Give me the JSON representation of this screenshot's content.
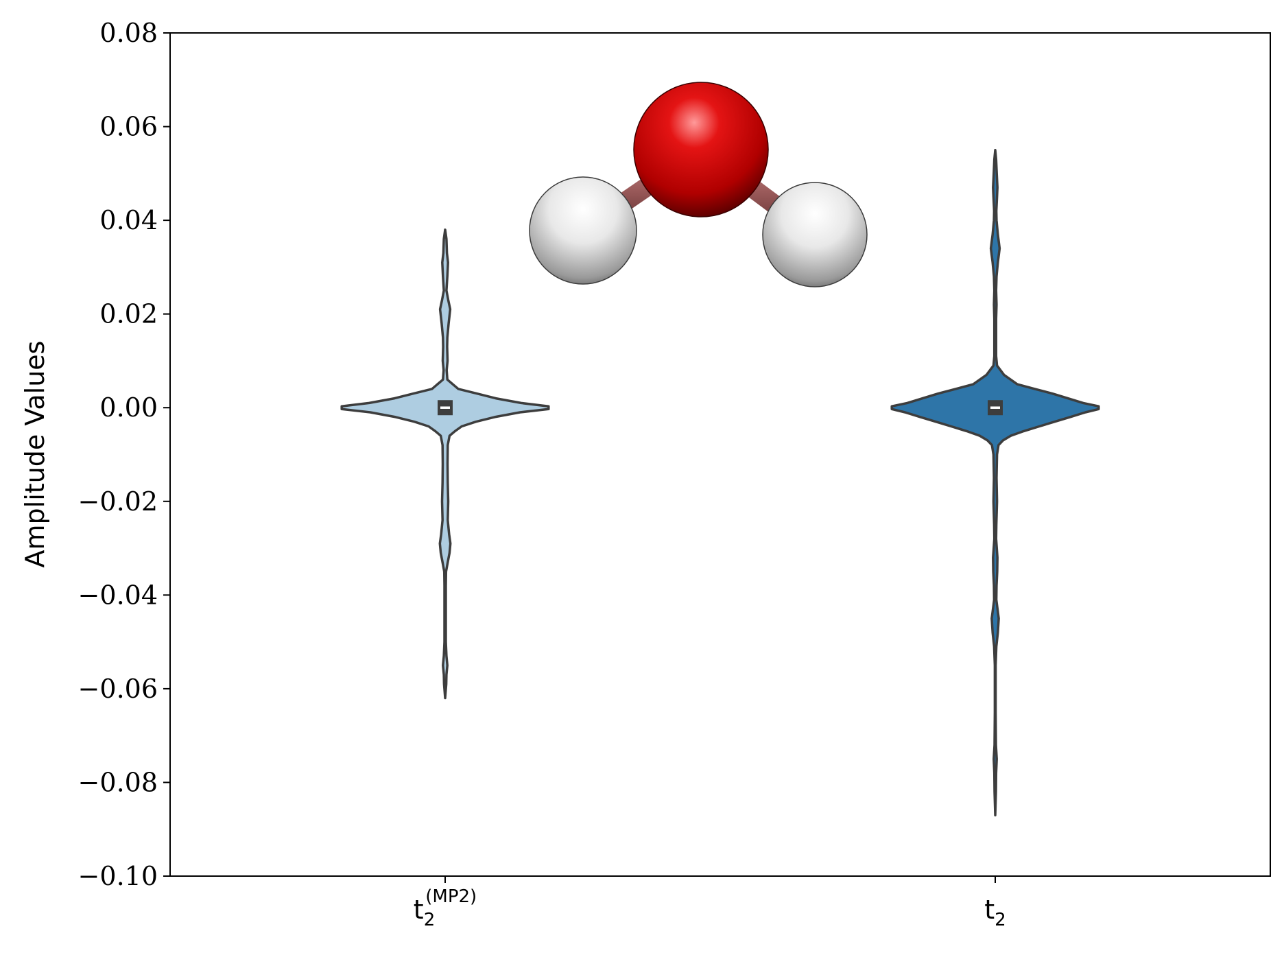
{
  "chart_data": {
    "type": "violin",
    "title": "",
    "xlabel": "",
    "ylabel": "Amplitude Values",
    "ylim": [
      -0.1,
      0.08
    ],
    "yticks": [
      0.08,
      0.06,
      0.04,
      0.02,
      0.0,
      -0.02,
      -0.04,
      -0.06,
      -0.08,
      -0.1
    ],
    "ytick_labels": [
      "0.08",
      "0.06",
      "0.04",
      "0.02",
      "0.00",
      "−0.02",
      "−0.04",
      "−0.06",
      "−0.08",
      "−0.10"
    ],
    "grid": false,
    "categories": [
      {
        "base": "t",
        "sub": "2",
        "sup": "(MP2)"
      },
      {
        "base": "t",
        "sub": "2",
        "sup": ""
      }
    ],
    "series": [
      {
        "color": "#aecde1",
        "edge_color": "#3d3d3d",
        "median": 0.0,
        "min": -0.062,
        "max": 0.038,
        "profile": [
          [
            0.038,
            0.0
          ],
          [
            0.036,
            0.006
          ],
          [
            0.033,
            0.008
          ],
          [
            0.031,
            0.013
          ],
          [
            0.028,
            0.01
          ],
          [
            0.025,
            0.006
          ],
          [
            0.023,
            0.014
          ],
          [
            0.021,
            0.023
          ],
          [
            0.018,
            0.016
          ],
          [
            0.015,
            0.01
          ],
          [
            0.013,
            0.009
          ],
          [
            0.01,
            0.011
          ],
          [
            0.008,
            0.007
          ],
          [
            0.006,
            0.01
          ],
          [
            0.004,
            0.06
          ],
          [
            0.003,
            0.145
          ],
          [
            0.002,
            0.23
          ],
          [
            0.001,
            0.345
          ],
          [
            0.0003,
            0.47
          ],
          [
            -0.0003,
            0.47
          ],
          [
            -0.001,
            0.34
          ],
          [
            -0.002,
            0.225
          ],
          [
            -0.003,
            0.14
          ],
          [
            -0.004,
            0.075
          ],
          [
            -0.005,
            0.045
          ],
          [
            -0.006,
            0.02
          ],
          [
            -0.008,
            0.012
          ],
          [
            -0.012,
            0.011
          ],
          [
            -0.016,
            0.012
          ],
          [
            -0.02,
            0.014
          ],
          [
            -0.024,
            0.012
          ],
          [
            -0.027,
            0.018
          ],
          [
            -0.029,
            0.024
          ],
          [
            -0.031,
            0.02
          ],
          [
            -0.033,
            0.012
          ],
          [
            -0.035,
            0.004
          ],
          [
            -0.038,
            0.003
          ],
          [
            -0.044,
            0.003
          ],
          [
            -0.05,
            0.003
          ],
          [
            -0.053,
            0.006
          ],
          [
            -0.055,
            0.01
          ],
          [
            -0.057,
            0.006
          ],
          [
            -0.059,
            0.005
          ],
          [
            -0.062,
            0.0
          ]
        ]
      },
      {
        "color": "#2e75a8",
        "edge_color": "#3d3d3d",
        "median": 0.0,
        "min": -0.087,
        "max": 0.055,
        "profile": [
          [
            0.055,
            0.0
          ],
          [
            0.053,
            0.004
          ],
          [
            0.05,
            0.007
          ],
          [
            0.047,
            0.01
          ],
          [
            0.045,
            0.008
          ],
          [
            0.042,
            0.005
          ],
          [
            0.04,
            0.006
          ],
          [
            0.037,
            0.012
          ],
          [
            0.034,
            0.02
          ],
          [
            0.031,
            0.012
          ],
          [
            0.028,
            0.006
          ],
          [
            0.025,
            0.004
          ],
          [
            0.022,
            0.006
          ],
          [
            0.019,
            0.004
          ],
          [
            0.015,
            0.004
          ],
          [
            0.011,
            0.004
          ],
          [
            0.009,
            0.008
          ],
          [
            0.007,
            0.04
          ],
          [
            0.005,
            0.1
          ],
          [
            0.004,
            0.18
          ],
          [
            0.003,
            0.26
          ],
          [
            0.002,
            0.33
          ],
          [
            0.001,
            0.4
          ],
          [
            0.0003,
            0.47
          ],
          [
            -0.0003,
            0.47
          ],
          [
            -0.001,
            0.41
          ],
          [
            -0.002,
            0.34
          ],
          [
            -0.003,
            0.27
          ],
          [
            -0.004,
            0.2
          ],
          [
            -0.005,
            0.13
          ],
          [
            -0.006,
            0.07
          ],
          [
            -0.007,
            0.035
          ],
          [
            -0.008,
            0.015
          ],
          [
            -0.01,
            0.008
          ],
          [
            -0.015,
            0.006
          ],
          [
            -0.02,
            0.008
          ],
          [
            -0.025,
            0.005
          ],
          [
            -0.028,
            0.004
          ],
          [
            -0.032,
            0.01
          ],
          [
            -0.035,
            0.009
          ],
          [
            -0.038,
            0.006
          ],
          [
            -0.041,
            0.005
          ],
          [
            -0.045,
            0.016
          ],
          [
            -0.048,
            0.012
          ],
          [
            -0.051,
            0.005
          ],
          [
            -0.055,
            0.002
          ],
          [
            -0.065,
            0.002
          ],
          [
            -0.072,
            0.003
          ],
          [
            -0.075,
            0.007
          ],
          [
            -0.078,
            0.004
          ],
          [
            -0.082,
            0.003
          ],
          [
            -0.087,
            0.0
          ]
        ]
      }
    ],
    "inset_image": {
      "description_name": "water-molecule",
      "atoms": [
        {
          "element": "O",
          "color": "#d40000"
        },
        {
          "element": "H",
          "color": "#eeeeee"
        },
        {
          "element": "H",
          "color": "#eeeeee"
        }
      ]
    }
  }
}
